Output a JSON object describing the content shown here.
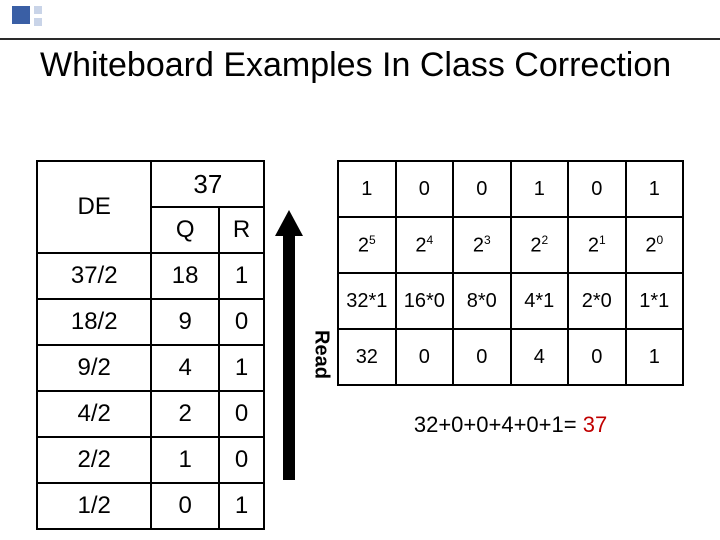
{
  "title": "Whiteboard Examples In Class Correction",
  "left_table": {
    "header_span": "37",
    "columns": [
      "DE",
      "Q",
      "R"
    ],
    "rows": [
      [
        "37/2",
        "18",
        "1"
      ],
      [
        "18/2",
        "9",
        "0"
      ],
      [
        "9/2",
        "4",
        "1"
      ],
      [
        "4/2",
        "2",
        "0"
      ],
      [
        "2/2",
        "1",
        "0"
      ],
      [
        "1/2",
        "0",
        "1"
      ]
    ]
  },
  "arrow_label": "Read",
  "right_table": {
    "row_bits": [
      "1",
      "0",
      "0",
      "1",
      "0",
      "1"
    ],
    "row_powers_base": "2",
    "row_powers_exp": [
      "5",
      "4",
      "3",
      "2",
      "1",
      "0"
    ],
    "row_products": [
      "32*1",
      "16*0",
      "8*0",
      "4*1",
      "2*0",
      "1*1"
    ],
    "row_values": [
      "32",
      "0",
      "0",
      "4",
      "0",
      "1"
    ]
  },
  "sum": {
    "expr": "32+0+0+4+0+1= ",
    "result": "37"
  },
  "colors": {
    "accent_square": "#3a5fa5",
    "light_square": "#c9d4e8",
    "result_color": "#c00000",
    "border": "#000000",
    "background": "#ffffff"
  }
}
